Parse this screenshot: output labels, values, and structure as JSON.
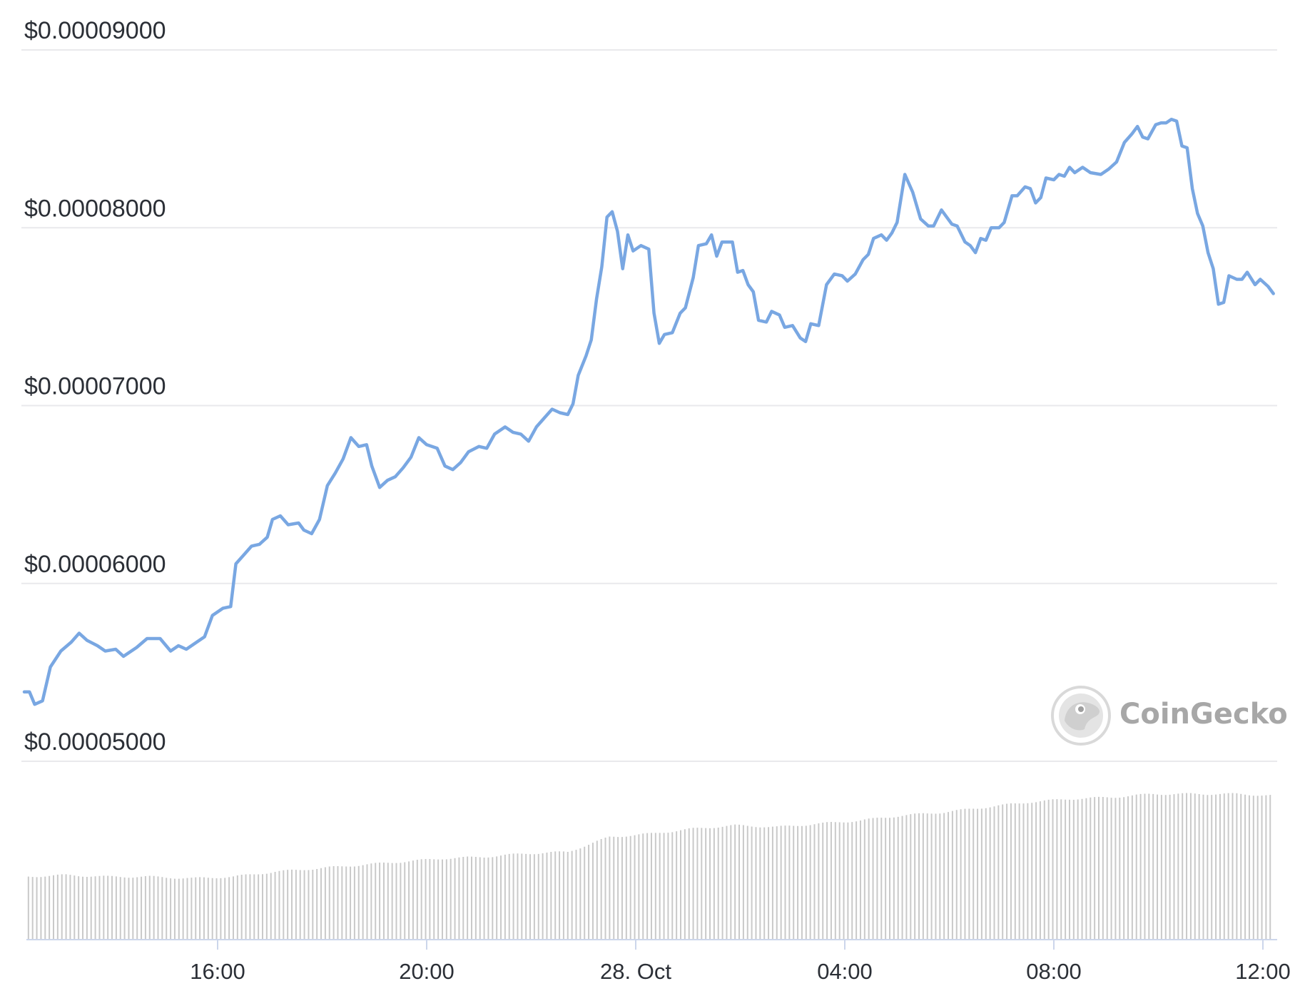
{
  "chart_data": {
    "type": "line",
    "title": "",
    "xlabel": "",
    "ylabel": "",
    "ylim": [
      5e-05,
      9e-05
    ],
    "grid": true,
    "y_ticks": [
      {
        "value": 9e-05,
        "label": "$0.00009000"
      },
      {
        "value": 8e-05,
        "label": "$0.00008000"
      },
      {
        "value": 7e-05,
        "label": "$0.00007000"
      },
      {
        "value": 6e-05,
        "label": "$0.00006000"
      },
      {
        "value": 5e-05,
        "label": "$0.00005000"
      }
    ],
    "x_ticks": [
      {
        "time": "16:00",
        "label": "16:00"
      },
      {
        "time": "20:00",
        "label": "20:00"
      },
      {
        "time": "00:00",
        "label": "28. Oct"
      },
      {
        "time": "04:00",
        "label": "04:00"
      },
      {
        "time": "08:00",
        "label": "08:00"
      },
      {
        "time": "12:00",
        "label": "12:00"
      }
    ],
    "x_range_hours": [
      -11.7,
      12.2
    ],
    "series": [
      {
        "color": "#79a7e2",
        "points": [
          [
            -11.7,
            5.39e-05
          ],
          [
            -11.6,
            5.39e-05
          ],
          [
            -11.5,
            5.32e-05
          ],
          [
            -11.35,
            5.34e-05
          ],
          [
            -11.2,
            5.53e-05
          ],
          [
            -11.0,
            5.62e-05
          ],
          [
            -10.8,
            5.67e-05
          ],
          [
            -10.65,
            5.72e-05
          ],
          [
            -10.5,
            5.68e-05
          ],
          [
            -10.3,
            5.65e-05
          ],
          [
            -10.15,
            5.62e-05
          ],
          [
            -9.95,
            5.63e-05
          ],
          [
            -9.8,
            5.59e-05
          ],
          [
            -9.55,
            5.64e-05
          ],
          [
            -9.35,
            5.69e-05
          ],
          [
            -9.1,
            5.69e-05
          ],
          [
            -8.9,
            5.62e-05
          ],
          [
            -8.75,
            5.65e-05
          ],
          [
            -8.6,
            5.63e-05
          ],
          [
            -8.4,
            5.67e-05
          ],
          [
            -8.25,
            5.7e-05
          ],
          [
            -8.1,
            5.82e-05
          ],
          [
            -7.9,
            5.86e-05
          ],
          [
            -7.75,
            5.87e-05
          ],
          [
            -7.65,
            6.11e-05
          ],
          [
            -7.5,
            6.16e-05
          ],
          [
            -7.35,
            6.21e-05
          ],
          [
            -7.2,
            6.22e-05
          ],
          [
            -7.05,
            6.26e-05
          ],
          [
            -6.95,
            6.36e-05
          ],
          [
            -6.8,
            6.38e-05
          ],
          [
            -6.65,
            6.33e-05
          ],
          [
            -6.45,
            6.34e-05
          ],
          [
            -6.35,
            6.3e-05
          ],
          [
            -6.2,
            6.28e-05
          ],
          [
            -6.05,
            6.36e-05
          ],
          [
            -5.9,
            6.55e-05
          ],
          [
            -5.75,
            6.62e-05
          ],
          [
            -5.6,
            6.7e-05
          ],
          [
            -5.45,
            6.82e-05
          ],
          [
            -5.3,
            6.77e-05
          ],
          [
            -5.15,
            6.78e-05
          ],
          [
            -5.05,
            6.66e-05
          ],
          [
            -4.9,
            6.54e-05
          ],
          [
            -4.75,
            6.58e-05
          ],
          [
            -4.6,
            6.6e-05
          ],
          [
            -4.45,
            6.65e-05
          ],
          [
            -4.3,
            6.71e-05
          ],
          [
            -4.15,
            6.82e-05
          ],
          [
            -4.0,
            6.78e-05
          ],
          [
            -3.8,
            6.76e-05
          ],
          [
            -3.65,
            6.66e-05
          ],
          [
            -3.5,
            6.64e-05
          ],
          [
            -3.35,
            6.68e-05
          ],
          [
            -3.2,
            6.74e-05
          ],
          [
            -3.0,
            6.77e-05
          ],
          [
            -2.85,
            6.76e-05
          ],
          [
            -2.7,
            6.84e-05
          ],
          [
            -2.5,
            6.88e-05
          ],
          [
            -2.35,
            6.85e-05
          ],
          [
            -2.2,
            6.84e-05
          ],
          [
            -2.05,
            6.8e-05
          ],
          [
            -1.9,
            6.88e-05
          ],
          [
            -1.75,
            6.93e-05
          ],
          [
            -1.6,
            6.98e-05
          ],
          [
            -1.45,
            6.96e-05
          ],
          [
            -1.3,
            6.95e-05
          ],
          [
            -1.2,
            7.01e-05
          ],
          [
            -1.1,
            7.17e-05
          ],
          [
            -0.95,
            7.28e-05
          ],
          [
            -0.85,
            7.37e-05
          ],
          [
            -0.75,
            7.6e-05
          ],
          [
            -0.65,
            7.78e-05
          ],
          [
            -0.55,
            8.06e-05
          ],
          [
            -0.45,
            8.09e-05
          ],
          [
            -0.35,
            7.98e-05
          ],
          [
            -0.25,
            7.77e-05
          ],
          [
            -0.15,
            7.96e-05
          ],
          [
            -0.05,
            7.87e-05
          ],
          [
            0.1,
            7.9e-05
          ],
          [
            0.25,
            7.88e-05
          ],
          [
            0.35,
            7.52e-05
          ],
          [
            0.45,
            7.35e-05
          ],
          [
            0.55,
            7.4e-05
          ],
          [
            0.7,
            7.41e-05
          ],
          [
            0.85,
            7.52e-05
          ],
          [
            0.95,
            7.55e-05
          ],
          [
            1.1,
            7.72e-05
          ],
          [
            1.2,
            7.9e-05
          ],
          [
            1.35,
            7.91e-05
          ],
          [
            1.45,
            7.96e-05
          ],
          [
            1.55,
            7.84e-05
          ],
          [
            1.65,
            7.92e-05
          ],
          [
            1.85,
            7.92e-05
          ],
          [
            1.95,
            7.75e-05
          ],
          [
            2.05,
            7.76e-05
          ],
          [
            2.15,
            7.68e-05
          ],
          [
            2.25,
            7.64e-05
          ],
          [
            2.35,
            7.48e-05
          ],
          [
            2.5,
            7.47e-05
          ],
          [
            2.6,
            7.53e-05
          ],
          [
            2.75,
            7.51e-05
          ],
          [
            2.85,
            7.44e-05
          ],
          [
            3.0,
            7.45e-05
          ],
          [
            3.15,
            7.38e-05
          ],
          [
            3.25,
            7.36e-05
          ],
          [
            3.35,
            7.46e-05
          ],
          [
            3.5,
            7.45e-05
          ],
          [
            3.65,
            7.68e-05
          ],
          [
            3.8,
            7.74e-05
          ],
          [
            3.95,
            7.73e-05
          ],
          [
            4.05,
            7.7e-05
          ],
          [
            4.2,
            7.74e-05
          ],
          [
            4.35,
            7.82e-05
          ],
          [
            4.45,
            7.85e-05
          ],
          [
            4.55,
            7.94e-05
          ],
          [
            4.7,
            7.96e-05
          ],
          [
            4.8,
            7.93e-05
          ],
          [
            4.9,
            7.97e-05
          ],
          [
            5.0,
            8.03e-05
          ],
          [
            5.15,
            8.3e-05
          ],
          [
            5.3,
            8.2e-05
          ],
          [
            5.45,
            8.05e-05
          ],
          [
            5.6,
            8.01e-05
          ],
          [
            5.7,
            8.01e-05
          ],
          [
            5.85,
            8.1e-05
          ],
          [
            6.05,
            8.02e-05
          ],
          [
            6.15,
            8.01e-05
          ],
          [
            6.3,
            7.92e-05
          ],
          [
            6.4,
            7.9e-05
          ],
          [
            6.5,
            7.86e-05
          ],
          [
            6.6,
            7.94e-05
          ],
          [
            6.7,
            7.93e-05
          ],
          [
            6.8,
            8e-05
          ],
          [
            6.95,
            8e-05
          ],
          [
            7.05,
            8.03e-05
          ],
          [
            7.2,
            8.18e-05
          ],
          [
            7.3,
            8.18e-05
          ],
          [
            7.45,
            8.23e-05
          ],
          [
            7.55,
            8.22e-05
          ],
          [
            7.65,
            8.14e-05
          ],
          [
            7.75,
            8.17e-05
          ],
          [
            7.85,
            8.28e-05
          ],
          [
            8.0,
            8.27e-05
          ],
          [
            8.1,
            8.3e-05
          ],
          [
            8.2,
            8.29e-05
          ],
          [
            8.3,
            8.34e-05
          ],
          [
            8.4,
            8.31e-05
          ],
          [
            8.55,
            8.34e-05
          ],
          [
            8.7,
            8.31e-05
          ],
          [
            8.9,
            8.3e-05
          ],
          [
            9.05,
            8.33e-05
          ],
          [
            9.2,
            8.37e-05
          ],
          [
            9.35,
            8.48e-05
          ],
          [
            9.5,
            8.53e-05
          ],
          [
            9.6,
            8.57e-05
          ],
          [
            9.7,
            8.51e-05
          ],
          [
            9.8,
            8.5e-05
          ],
          [
            9.95,
            8.58e-05
          ],
          [
            10.05,
            8.59e-05
          ],
          [
            10.15,
            8.59e-05
          ],
          [
            10.25,
            8.61e-05
          ],
          [
            10.35,
            8.6e-05
          ],
          [
            10.45,
            8.46e-05
          ],
          [
            10.55,
            8.45e-05
          ],
          [
            10.65,
            8.22e-05
          ],
          [
            10.75,
            8.08e-05
          ],
          [
            10.85,
            8.01e-05
          ],
          [
            10.95,
            7.86e-05
          ],
          [
            11.05,
            7.77e-05
          ],
          [
            11.15,
            7.57e-05
          ],
          [
            11.25,
            7.58e-05
          ],
          [
            11.35,
            7.73e-05
          ],
          [
            11.5,
            7.71e-05
          ],
          [
            11.6,
            7.71e-05
          ],
          [
            11.7,
            7.75e-05
          ],
          [
            11.85,
            7.68e-05
          ],
          [
            11.95,
            7.71e-05
          ],
          [
            12.1,
            7.67e-05
          ],
          [
            12.2,
            7.63e-05
          ]
        ]
      }
    ],
    "volume_series": {
      "color": "#c9c9c9",
      "points": [
        [
          -11.7,
          0.38
        ],
        [
          -10.9,
          0.39
        ],
        [
          -10.1,
          0.38
        ],
        [
          -9.3,
          0.38
        ],
        [
          -8.5,
          0.37
        ],
        [
          -7.7,
          0.38
        ],
        [
          -6.9,
          0.41
        ],
        [
          -6.1,
          0.43
        ],
        [
          -5.3,
          0.45
        ],
        [
          -4.5,
          0.47
        ],
        [
          -3.7,
          0.49
        ],
        [
          -2.9,
          0.5
        ],
        [
          -2.1,
          0.52
        ],
        [
          -1.3,
          0.53
        ],
        [
          -0.5,
          0.62
        ],
        [
          0.3,
          0.64
        ],
        [
          1.1,
          0.67
        ],
        [
          1.9,
          0.69
        ],
        [
          2.7,
          0.68
        ],
        [
          3.5,
          0.7
        ],
        [
          4.3,
          0.72
        ],
        [
          5.1,
          0.75
        ],
        [
          5.9,
          0.77
        ],
        [
          6.7,
          0.8
        ],
        [
          7.5,
          0.83
        ],
        [
          8.3,
          0.85
        ],
        [
          9.1,
          0.86
        ],
        [
          9.9,
          0.88
        ],
        [
          10.7,
          0.88
        ],
        [
          11.5,
          0.88
        ],
        [
          12.2,
          0.87
        ]
      ]
    }
  },
  "watermark": {
    "text": "CoinGecko",
    "icon": "coingecko-logo-icon"
  }
}
